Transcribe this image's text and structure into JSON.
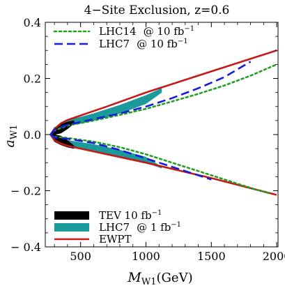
{
  "chart_data": {
    "type": "line",
    "title": "4−Site Exclusion, z=0.6",
    "xlabel": "M",
    "xlabel_sub": "W1",
    "xlabel_unit": "(GeV)",
    "ylabel": "a",
    "ylabel_sub": "W1",
    "xlim": [
      230,
      2010
    ],
    "ylim": [
      -0.4,
      0.4
    ],
    "xticks": [
      500,
      1000,
      1500,
      2000
    ],
    "xtick_labels": [
      "500",
      "1000",
      "1500",
      "2000"
    ],
    "yticks": [
      -0.4,
      -0.2,
      0.0,
      0.2,
      0.4
    ],
    "ytick_labels": [
      "− 0.4",
      "− 0.2",
      "0.0",
      "0.2",
      "0.4"
    ],
    "grid": false,
    "legend_top": [
      {
        "name": "LHC14",
        "at": "@ 10 fb",
        "sup": "−1",
        "style": "dotted",
        "color": "#22a022"
      },
      {
        "name": "LHC7",
        "at": "@ 10 fb",
        "sup": "−1",
        "style": "dashed",
        "color": "#1a1adc"
      }
    ],
    "legend_bottom": [
      {
        "name": "TEV 10 fb",
        "sup": "−1",
        "style": "filled",
        "color": "#000000"
      },
      {
        "name": "LHC7",
        "at": "@   1 fb",
        "sup": "−1",
        "style": "filled",
        "color": "#1a9a9a"
      },
      {
        "name": "EWPT",
        "style": "line",
        "color": "#c41a1a"
      }
    ],
    "series": [
      {
        "name": "EWPT",
        "color": "#c41a1a",
        "style": "solid",
        "upper": {
          "x": [
            270,
            300,
            350,
            400,
            500,
            700,
            1000,
            1500,
            2000
          ],
          "y": [
            0.0,
            0.02,
            0.04,
            0.052,
            0.068,
            0.1,
            0.15,
            0.225,
            0.3
          ]
        },
        "lower": {
          "x": [
            270,
            300,
            350,
            400,
            500,
            700,
            1000,
            1500,
            2000
          ],
          "y": [
            0.0,
            -0.02,
            -0.032,
            -0.04,
            -0.05,
            -0.07,
            -0.1,
            -0.155,
            -0.215
          ]
        }
      },
      {
        "name": "LHC14",
        "color": "#22a022",
        "style": "dotted",
        "upper": {
          "x": [
            270,
            300,
            400,
            600,
            800,
            1000,
            1200,
            1400,
            1600,
            1800,
            2000
          ],
          "y": [
            0.0,
            0.015,
            0.032,
            0.05,
            0.07,
            0.092,
            0.118,
            0.145,
            0.175,
            0.21,
            0.25
          ]
        },
        "lower": {
          "x": [
            270,
            300,
            400,
            600,
            800,
            1000,
            1200,
            1400,
            1600,
            1800,
            1950
          ],
          "y": [
            0.0,
            -0.008,
            -0.012,
            -0.025,
            -0.045,
            -0.07,
            -0.1,
            -0.13,
            -0.16,
            -0.19,
            -0.21
          ]
        }
      },
      {
        "name": "LHC7",
        "color": "#1a1adc",
        "style": "dashed",
        "upper": {
          "x": [
            270,
            300,
            400,
            600,
            800,
            1000,
            1200,
            1400,
            1600,
            1800
          ],
          "y": [
            0.0,
            0.018,
            0.035,
            0.055,
            0.075,
            0.1,
            0.13,
            0.165,
            0.205,
            0.26
          ]
        },
        "lower": {
          "x": [
            270,
            300,
            400,
            600,
            800,
            1000,
            1200,
            1400,
            1500
          ],
          "y": [
            0.0,
            -0.01,
            -0.015,
            -0.03,
            -0.055,
            -0.085,
            -0.115,
            -0.145,
            -0.16
          ]
        }
      }
    ],
    "regions": [
      {
        "name": "LHC7 @ 1 fb",
        "color": "#1a9a9a",
        "upper": {
          "outer": {
            "x": [
              300,
              400,
              600,
              800,
              1000,
              1120
            ],
            "y": [
              0.022,
              0.05,
              0.075,
              0.105,
              0.14,
              0.165
            ]
          },
          "inner": {
            "x": [
              300,
              400,
              600,
              800,
              1000,
              1120
            ],
            "y": [
              0.012,
              0.03,
              0.05,
              0.075,
              0.11,
              0.15
            ]
          }
        },
        "lower": {
          "outer": {
            "x": [
              300,
              400,
              600,
              800,
              1000,
              1120
            ],
            "y": [
              -0.022,
              -0.042,
              -0.06,
              -0.08,
              -0.1,
              -0.12
            ]
          },
          "inner": {
            "x": [
              300,
              400,
              600,
              800,
              1000,
              1120
            ],
            "y": [
              -0.01,
              -0.02,
              -0.035,
              -0.055,
              -0.08,
              -0.115
            ]
          }
        }
      },
      {
        "name": "TEV 10 fb",
        "color": "#000000",
        "upper": {
          "outer": {
            "x": [
              265,
              300,
              350,
              400,
              450
            ],
            "y": [
              0.0,
              0.025,
              0.037,
              0.045,
              0.05
            ]
          },
          "inner": {
            "x": [
              265,
              300,
              350,
              400,
              450
            ],
            "y": [
              0.0,
              0.0,
              0.005,
              0.02,
              0.04
            ]
          }
        },
        "lower": {
          "outer": {
            "x": [
              265,
              300,
              350,
              400,
              450
            ],
            "y": [
              0.0,
              -0.025,
              -0.037,
              -0.045,
              -0.05
            ]
          },
          "inner": {
            "x": [
              265,
              300,
              350,
              400,
              450
            ],
            "y": [
              0.0,
              0.0,
              -0.005,
              -0.02,
              -0.04
            ]
          }
        }
      }
    ]
  }
}
